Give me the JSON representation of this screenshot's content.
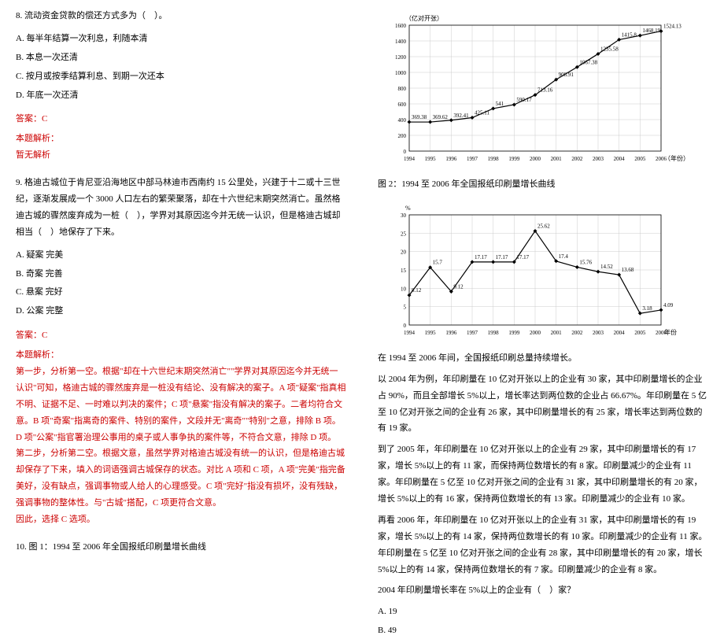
{
  "left": {
    "q8": {
      "stem": "8. 流动资金贷款的偿还方式多为（　）。",
      "opts": {
        "A": "A. 每半年结算一次利息，利随本清",
        "B": "B. 本息一次还清",
        "C": "C. 按月或按季结算利息、到期一次还本",
        "D": "D. 年底一次还清"
      },
      "answer": "答案：C",
      "analysis_label": "本题解析：",
      "analysis_body": "暂无解析"
    },
    "q9": {
      "stem": "9. 格迪古城位于肯尼亚沿海地区中部马林迪市西南约 15 公里处，兴建于十二或十三世纪，逐渐发展成一个 3000 人口左右的繁荣聚落，却在十六世纪末期突然消亡。虽然格迪古城的骤然废弃成为一桩（　），学界对其原因迄今并无统一认识，但是格迪古城却相当（　）地保存了下来。",
      "opts": {
        "A": "A. 疑案 完美",
        "B": "B. 奇案 完善",
        "C": "C. 悬案 完好",
        "D": "D. 公案 完整"
      },
      "answer": "答案：C",
      "analysis_label": "本题解析：",
      "analysis_body": "第一步，分析第一空。根据\"却在十六世纪末期突然消亡\"\"学界对其原因迄今并无统一认识\"可知，格迪古城的骤然废弃是一桩没有结论、没有解决的案子。A 项\"疑案\"指真相不明、证据不足、一时难以判决的案件；C 项\"悬案\"指没有解决的案子。二者均符合文意。B 项\"奇案\"指离奇的案件、特别的案件，文段并无\"离奇\"\"特别\"之意，排除 B 项。D 项\"公案\"指官署治理公事用的桌子或人事争执的案件等，不符合文意，排除 D 项。\n第二步，分析第二空。根据文意，虽然学界对格迪古城没有统一的认识，但是格迪古城却保存了下来，填入的词语强调古城保存的状态。对比 A 项和 C 项，A 项\"完美\"指完备美好，没有缺点，强调事物或人给人的心理感受。C 项\"完好\"指没有损坏，没有残缺，强调事物的整体性。与\"古城\"搭配，C 项更符合文意。\n因此，选择 C 选项。"
    },
    "q10_lead": "10. 图 1：1994 至 2006 年全国报纸印刷量增长曲线"
  },
  "right": {
    "chart1": {
      "type": "line",
      "y_title": "（亿对开张）",
      "x_title": "（年份）",
      "x_labels": [
        "1994",
        "1995",
        "1996",
        "1997",
        "1998",
        "1999",
        "2000",
        "2001",
        "2002",
        "2003",
        "2004",
        "2005",
        "2006"
      ],
      "y_min": 0,
      "y_max": 1600,
      "y_step": 200,
      "values": [
        369.38,
        369.62,
        392.41,
        425.11,
        541,
        590.17,
        713.16,
        908.91,
        1067.38,
        1235.58,
        1415.8,
        1468.19,
        1524.13
      ],
      "point_labels": [
        "369.38",
        "369.62",
        "392.41",
        "425.11",
        "541",
        "590.17",
        "713.16",
        "908.91",
        "1067.38",
        "1235.58",
        "1415.8",
        "1468.19",
        "1524.13"
      ],
      "line_color": "#000000",
      "marker": "diamond",
      "grid_color": "#cccccc",
      "bg": "#ffffff",
      "font_size": 7
    },
    "caption1": "图 2：1994 至 2006 年全国报纸印刷量增长曲线",
    "chart2": {
      "type": "line",
      "y_title": "%",
      "x_title": "年份",
      "x_labels": [
        "1994",
        "1995",
        "1996",
        "1997",
        "1998",
        "1999",
        "2000",
        "2001",
        "2002",
        "2003",
        "2004",
        "2005",
        "2006"
      ],
      "y_min": 0,
      "y_max": 30,
      "y_step": 5,
      "values": [
        8.12,
        15.7,
        9.12,
        17.17,
        17.17,
        17.17,
        25.62,
        17.4,
        15.76,
        14.52,
        13.68,
        3.18,
        4.09
      ],
      "point_labels": [
        "8.12",
        "15.7",
        "9.12",
        "17.17",
        "17.17",
        "17.17",
        "25.62",
        "17.4",
        "15.76",
        "14.52",
        "13.68",
        "3.18",
        "4.09"
      ],
      "line_color": "#000000",
      "marker": "diamond",
      "grid_color": "#cccccc",
      "bg": "#ffffff",
      "font_size": 7
    },
    "para1": "在 1994 至 2006 年间，全国报纸印刷总量持续增长。",
    "para2": "以 2004 年为例，年印刷量在 10 亿对开张以上的企业有 30 家，其中印刷量增长的企业占 90%，而且全部增长 5%以上，增长率达到两位数的企业占 66.67%。年印刷量在 5 亿至 10 亿对开张之间的企业有 26 家，其中印刷量增长的有 25 家，增长率达到两位数的有 19 家。",
    "para3": "到了 2005 年，年印刷量在 10 亿对开张以上的企业有 29 家，其中印刷量增长的有 17 家，增长 5%以上的有 11 家，而保持两位数增长的有 8 家。印刷量减少的企业有 11 家。年印刷量在 5 亿至 10 亿对开张之间的企业有 31 家，其中印刷量增长的有 20 家，增长 5%以上的有 16 家，保持两位数增长的有 13 家。印刷量减少的企业有 10 家。",
    "para4": "再看 2006 年，年印刷量在 10 亿对开张以上的企业有 31 家，其中印刷量增长的有 19 家，增长 5%以上的有 14 家，保持两位数增长的有 10 家。印刷量减少的企业有 11 家。年印刷量在 5 亿至 10 亿对开张之间的企业有 28 家，其中印刷量增长的有 20 家，增长 5%以上的有 14 家，保持两位数增长的有 7 家。印刷量减少的企业有 8 家。",
    "question": "2004 年印刷量增长率在 5%以上的企业有（　）家？",
    "opts": {
      "A": "A. 19",
      "B": "B. 49"
    }
  }
}
